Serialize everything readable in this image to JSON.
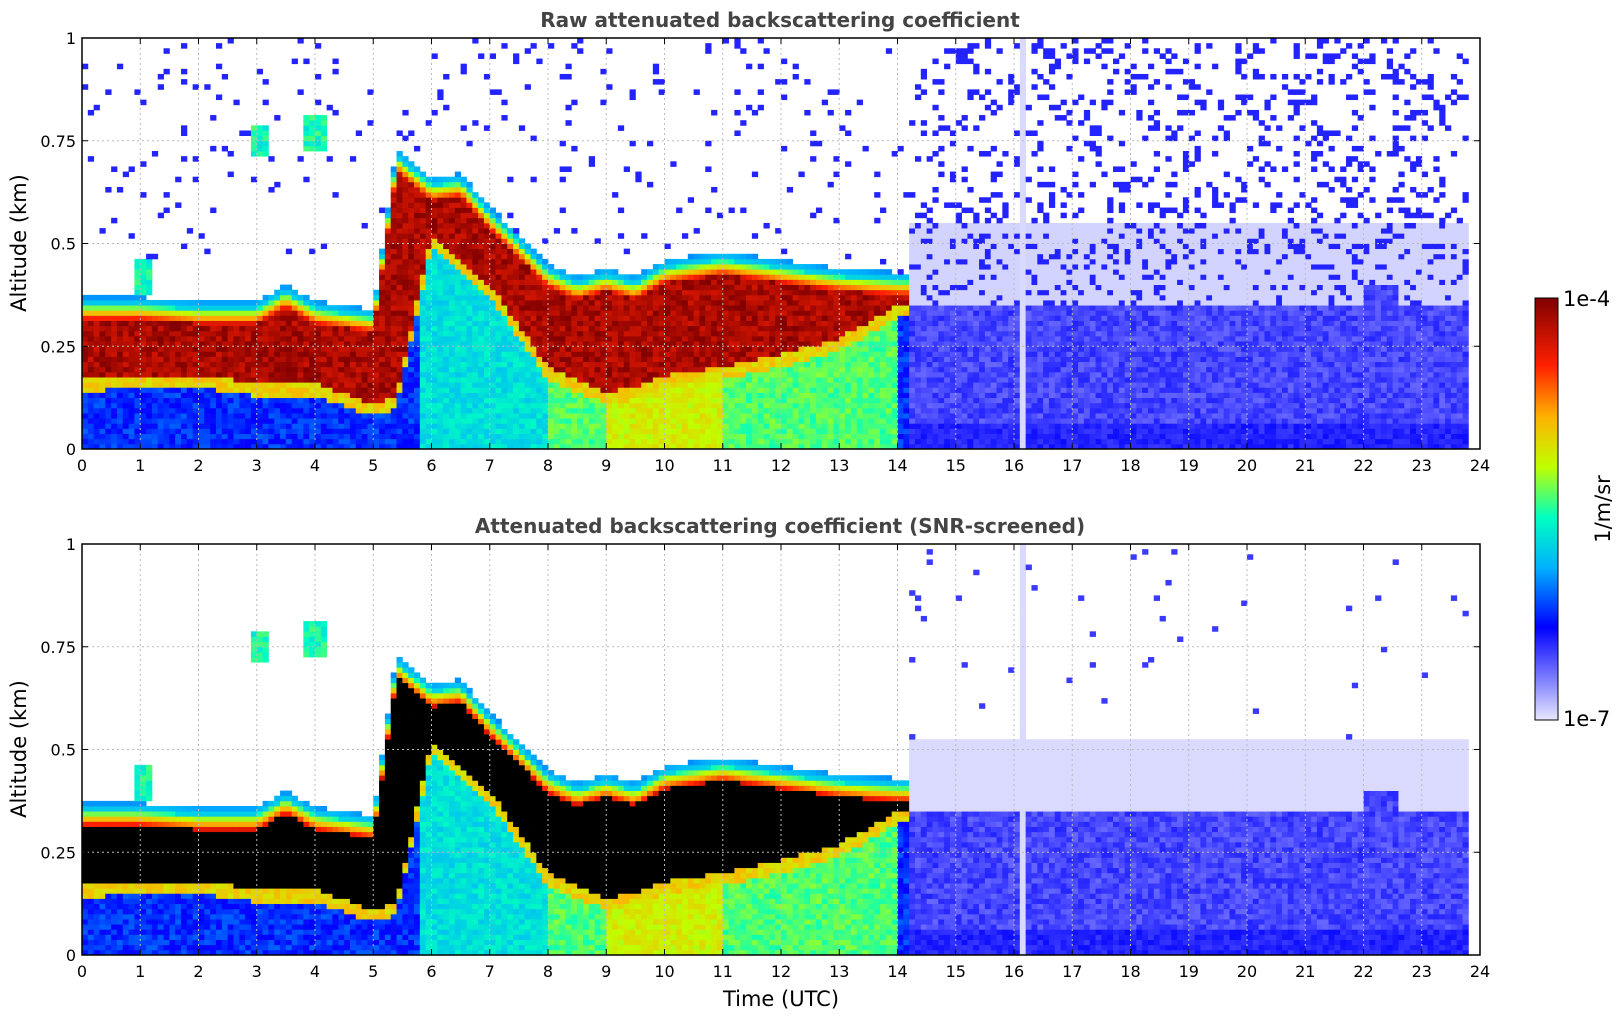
{
  "chart_data": [
    {
      "type": "heatmap",
      "title": "Raw attenuated backscattering coefficient",
      "xlabel": "",
      "ylabel": "Altitude (km)",
      "xlim": [
        0,
        24
      ],
      "ylim": [
        0,
        1
      ],
      "xticks": [
        "0",
        "1",
        "2",
        "3",
        "4",
        "5",
        "6",
        "7",
        "8",
        "9",
        "10",
        "11",
        "12",
        "13",
        "14",
        "15",
        "16",
        "17",
        "18",
        "19",
        "20",
        "21",
        "22",
        "23",
        "24"
      ],
      "yticks": [
        "0",
        "0.25",
        "0.5",
        "0.75",
        "1"
      ],
      "grid": true,
      "screened": false,
      "layer_top_km": [
        [
          0.0,
          0.35
        ],
        [
          1.0,
          0.35
        ],
        [
          2.0,
          0.34
        ],
        [
          3.0,
          0.34
        ],
        [
          3.5,
          0.38
        ],
        [
          4.0,
          0.34
        ],
        [
          5.0,
          0.32
        ],
        [
          5.4,
          0.71
        ],
        [
          6.0,
          0.64
        ],
        [
          6.5,
          0.65
        ],
        [
          7.0,
          0.57
        ],
        [
          7.5,
          0.5
        ],
        [
          8.0,
          0.43
        ],
        [
          8.5,
          0.4
        ],
        [
          9.0,
          0.42
        ],
        [
          9.5,
          0.4
        ],
        [
          10.0,
          0.44
        ],
        [
          11.0,
          0.46
        ],
        [
          12.0,
          0.44
        ],
        [
          13.0,
          0.42
        ],
        [
          14.0,
          0.41
        ]
      ],
      "layer_bottom_km": [
        [
          0.0,
          0.17
        ],
        [
          1.0,
          0.18
        ],
        [
          2.0,
          0.18
        ],
        [
          3.0,
          0.16
        ],
        [
          4.0,
          0.16
        ],
        [
          5.0,
          0.11
        ],
        [
          5.4,
          0.13
        ],
        [
          6.0,
          0.52
        ],
        [
          7.0,
          0.4
        ],
        [
          8.0,
          0.2
        ],
        [
          8.5,
          0.17
        ],
        [
          9.0,
          0.14
        ],
        [
          9.5,
          0.15
        ],
        [
          10.0,
          0.18
        ],
        [
          11.0,
          0.2
        ],
        [
          12.0,
          0.23
        ],
        [
          13.0,
          0.27
        ],
        [
          14.0,
          0.35
        ]
      ],
      "small_clouds": [
        {
          "time_utc": 1.05,
          "alt_km": 0.42
        },
        {
          "time_utc": 3.05,
          "alt_km": 0.75
        },
        {
          "time_utc": 4.0,
          "alt_km": 0.77
        }
      ]
    },
    {
      "type": "heatmap",
      "title": "Attenuated backscattering coefficient (SNR-screened)",
      "xlabel": "Time (UTC)",
      "ylabel": "Altitude (km)",
      "xlim": [
        0,
        24
      ],
      "ylim": [
        0,
        1
      ],
      "xticks": [
        "0",
        "1",
        "2",
        "3",
        "4",
        "5",
        "6",
        "7",
        "8",
        "9",
        "10",
        "11",
        "12",
        "13",
        "14",
        "15",
        "16",
        "17",
        "18",
        "19",
        "20",
        "21",
        "22",
        "23",
        "24"
      ],
      "yticks": [
        "0",
        "0.25",
        "0.5",
        "0.75",
        "1"
      ],
      "grid": true,
      "screened": true,
      "saturated_color": "#000000"
    }
  ],
  "colorbar": {
    "label": "1/m/sr",
    "max_label": "1e-4",
    "min_label": "1e-7",
    "scale": "log",
    "colormap": [
      "#e8e8ff",
      "#9090ff",
      "#0000ff",
      "#00b0ff",
      "#00ffc0",
      "#c0ff00",
      "#ffb000",
      "#ff2000",
      "#800000"
    ]
  },
  "colors": {
    "background": "#ffffff",
    "grid": "#bbbbbb",
    "title_text": "#444444"
  }
}
